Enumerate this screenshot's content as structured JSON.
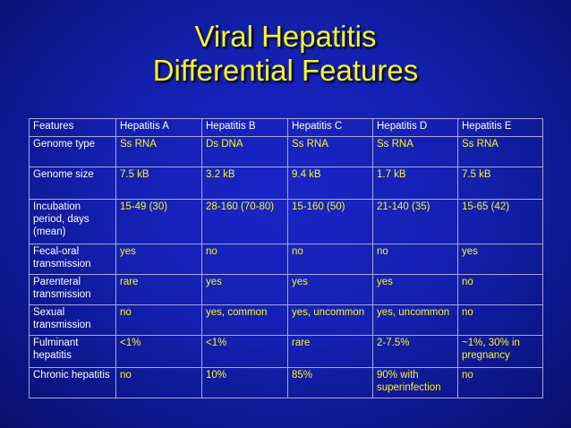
{
  "title": {
    "line1": "Viral Hepatitis",
    "line2": "Differential Features"
  },
  "table": {
    "headers": [
      "Features",
      "Hepatitis A",
      "Hepatitis B",
      "Hepatitis C",
      "Hepatitis D",
      "Hepatitis E"
    ],
    "rows": [
      {
        "feature": "Genome type",
        "values": [
          "Ss RNA",
          "Ds DNA",
          "Ss RNA",
          "Ss RNA",
          "Ss RNA"
        ]
      },
      {
        "feature": "Genome size",
        "values": [
          "7.5 kB",
          "3.2 kB",
          "9.4 kB",
          "1.7 kB",
          "7.5 kB"
        ]
      },
      {
        "feature": "Incubation period, days (mean)",
        "values": [
          "15-49 (30)",
          "28-160 (70-80)",
          "15-160 (50)",
          "21-140 (35)",
          "15-65 (42)"
        ]
      },
      {
        "feature": "Fecal-oral transmission",
        "values": [
          "yes",
          "no",
          "no",
          "no",
          "yes"
        ]
      },
      {
        "feature": "Parenteral transmission",
        "values": [
          "rare",
          "yes",
          "yes",
          "yes",
          "no"
        ]
      },
      {
        "feature": "Sexual transmission",
        "values": [
          "no",
          "yes, common",
          "yes, uncommon",
          "yes, uncommon",
          "no"
        ]
      },
      {
        "feature": "Fulminant hepatitis",
        "values": [
          "<1%",
          "<1%",
          "rare",
          "2-7.5%",
          "~1%, 30% in pregnancy"
        ]
      },
      {
        "feature": "Chronic hepatitis",
        "values": [
          "no",
          "10%",
          "85%",
          "90% with superinfection",
          "no"
        ]
      }
    ]
  }
}
